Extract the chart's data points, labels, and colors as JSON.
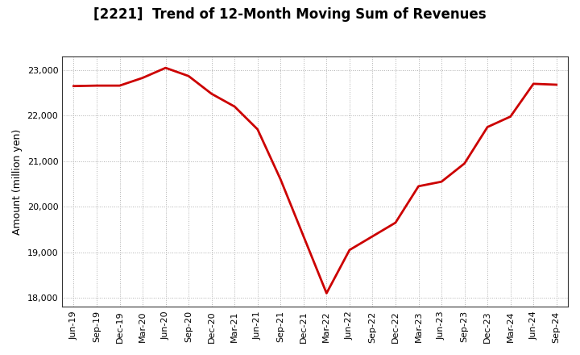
{
  "title": "[2221]  Trend of 12-Month Moving Sum of Revenues",
  "ylabel": "Amount (million yen)",
  "line_color": "#cc0000",
  "background_color": "#ffffff",
  "grid_color": "#b0b0b0",
  "ylim": [
    17800,
    23300
  ],
  "yticks": [
    18000,
    19000,
    20000,
    21000,
    22000,
    23000
  ],
  "labels": [
    "Jun-19",
    "Sep-19",
    "Dec-19",
    "Mar-20",
    "Jun-20",
    "Sep-20",
    "Dec-20",
    "Mar-21",
    "Jun-21",
    "Sep-21",
    "Dec-21",
    "Mar-22",
    "Jun-22",
    "Sep-22",
    "Dec-22",
    "Mar-23",
    "Jun-23",
    "Sep-23",
    "Dec-23",
    "Mar-24",
    "Jun-24",
    "Sep-24"
  ],
  "values": [
    22650,
    22660,
    22660,
    22830,
    23050,
    22870,
    22480,
    22200,
    21700,
    20600,
    19350,
    18100,
    19050,
    19350,
    19650,
    20450,
    20550,
    20950,
    21750,
    21980,
    22700,
    22680
  ],
  "title_fontsize": 12,
  "ylabel_fontsize": 9,
  "tick_fontsize": 8,
  "line_width": 2.0
}
